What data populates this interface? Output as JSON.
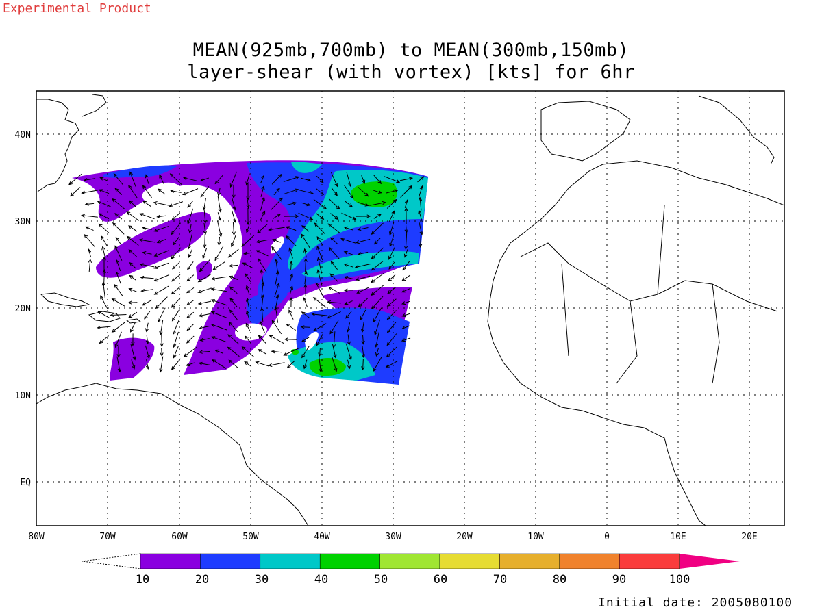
{
  "header": {
    "corner_label": "Experimental Product",
    "title_line1": "MEAN(925mb,700mb) to MEAN(300mb,150mb)",
    "title_line2": "layer-shear (with vortex) [kts] for 6hr"
  },
  "map": {
    "lon_labels": [
      "80W",
      "70W",
      "60W",
      "50W",
      "40W",
      "30W",
      "20W",
      "10W",
      "0",
      "10E",
      "20E"
    ],
    "lat_labels": [
      "40N",
      "30N",
      "20N",
      "10N",
      "EQ"
    ],
    "lon_range": [
      -80,
      25
    ],
    "lat_range": [
      -5,
      45
    ],
    "grid_lines": "dotted",
    "shading_levels": [
      10,
      20,
      30,
      40
    ]
  },
  "colorbar": {
    "labels": [
      "10",
      "20",
      "30",
      "40",
      "50",
      "60",
      "70",
      "80",
      "90",
      "100"
    ],
    "colors": [
      "#8a00e0",
      "#1e3cff",
      "#00c8c8",
      "#00d200",
      "#a0e632",
      "#e6dc32",
      "#e6af2d",
      "#f0822d",
      "#fa3c3c",
      "#f00082"
    ]
  },
  "footer": {
    "initial_date": "Initial date: 2005080100"
  }
}
